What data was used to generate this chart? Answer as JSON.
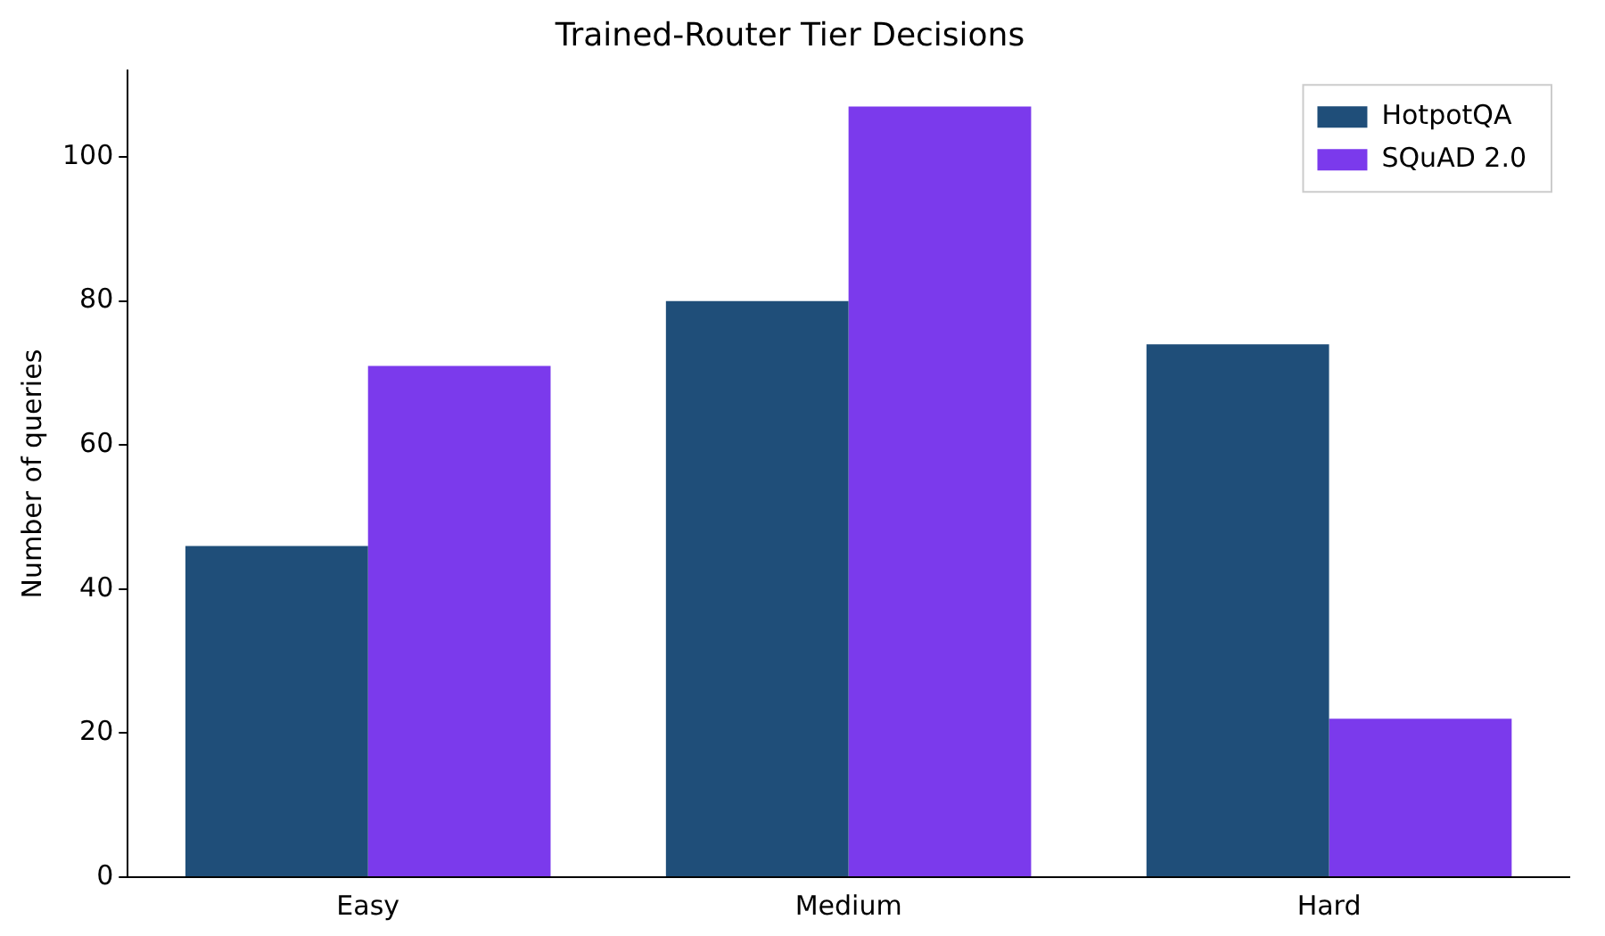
{
  "chart_data": {
    "type": "bar",
    "title": "Trained-Router Tier Decisions",
    "ylabel": "Number of queries",
    "categories": [
      "Easy",
      "Medium",
      "Hard"
    ],
    "series": [
      {
        "name": "HotpotQA",
        "color": "#1f4e79",
        "values": [
          46,
          80,
          74
        ]
      },
      {
        "name": "SQuAD 2.0",
        "color": "#7b3aec",
        "values": [
          71,
          107,
          22
        ]
      }
    ],
    "ylim": [
      0,
      112
    ],
    "yticks": [
      0,
      20,
      40,
      60,
      80,
      100
    ],
    "grid": false,
    "legend": "top right"
  }
}
